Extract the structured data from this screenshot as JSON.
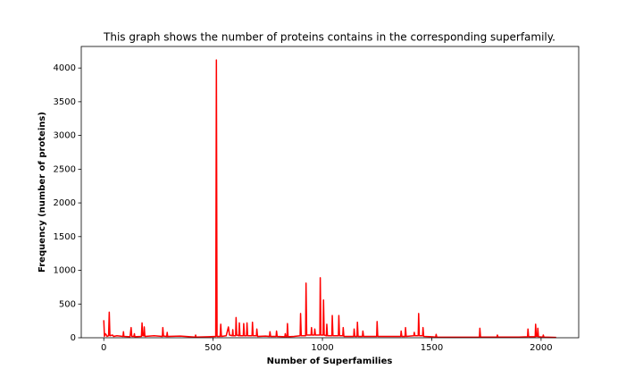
{
  "chart_data": {
    "type": "line",
    "title": "This graph shows the number of proteins contains in the corresponding superfamily.",
    "xlabel": "Number of Superfamilies",
    "ylabel": "Frequency (number of proteins)",
    "xlim": [
      -103,
      2172
    ],
    "ylim": [
      0,
      4320
    ],
    "xticks": [
      0,
      500,
      1000,
      1500,
      2000
    ],
    "yticks": [
      0,
      500,
      1000,
      1500,
      2000,
      2500,
      3000,
      3500,
      4000
    ],
    "x": [
      0,
      3,
      6,
      10,
      15,
      22,
      25,
      28,
      40,
      45,
      60,
      88,
      90,
      92,
      120,
      125,
      128,
      138,
      140,
      142,
      172,
      175,
      178,
      183,
      185,
      188,
      230,
      268,
      270,
      273,
      288,
      290,
      292,
      350,
      418,
      420,
      422,
      480,
      512,
      515,
      518,
      532,
      535,
      538,
      560,
      570,
      575,
      588,
      590,
      592,
      603,
      605,
      608,
      618,
      620,
      623,
      638,
      640,
      643,
      653,
      655,
      658,
      678,
      680,
      683,
      698,
      700,
      703,
      740,
      758,
      760,
      763,
      788,
      790,
      793,
      828,
      830,
      833,
      838,
      840,
      843,
      870,
      898,
      900,
      903,
      923,
      925,
      928,
      948,
      950,
      953,
      963,
      965,
      968,
      988,
      990,
      993,
      1003,
      1005,
      1008,
      1018,
      1020,
      1023,
      1043,
      1045,
      1048,
      1073,
      1075,
      1078,
      1093,
      1095,
      1098,
      1120,
      1143,
      1145,
      1148,
      1158,
      1160,
      1163,
      1183,
      1185,
      1188,
      1220,
      1248,
      1250,
      1253,
      1300,
      1358,
      1360,
      1363,
      1378,
      1380,
      1383,
      1418,
      1420,
      1423,
      1438,
      1440,
      1443,
      1458,
      1460,
      1463,
      1500,
      1518,
      1520,
      1523,
      1600,
      1718,
      1720,
      1723,
      1798,
      1800,
      1803,
      1900,
      1938,
      1940,
      1943,
      1973,
      1975,
      1978,
      1983,
      1985,
      1988,
      2008,
      2010,
      2013,
      2069
    ],
    "series": [
      {
        "color": "#ff0000",
        "values": [
          260,
          20,
          60,
          50,
          20,
          30,
          380,
          30,
          40,
          20,
          30,
          20,
          90,
          20,
          15,
          150,
          20,
          20,
          60,
          15,
          20,
          220,
          30,
          30,
          160,
          20,
          30,
          20,
          150,
          25,
          20,
          80,
          20,
          25,
          10,
          40,
          10,
          15,
          20,
          4120,
          20,
          20,
          200,
          20,
          30,
          160,
          40,
          30,
          120,
          30,
          30,
          300,
          40,
          30,
          220,
          30,
          30,
          210,
          30,
          30,
          220,
          30,
          30,
          230,
          30,
          30,
          130,
          20,
          25,
          20,
          90,
          20,
          20,
          100,
          20,
          15,
          60,
          15,
          15,
          210,
          15,
          20,
          30,
          360,
          30,
          30,
          810,
          40,
          40,
          150,
          40,
          40,
          130,
          40,
          40,
          890,
          40,
          40,
          560,
          40,
          30,
          200,
          30,
          30,
          330,
          30,
          30,
          330,
          30,
          30,
          150,
          20,
          20,
          20,
          130,
          20,
          20,
          230,
          20,
          20,
          100,
          20,
          20,
          20,
          240,
          20,
          20,
          20,
          100,
          20,
          20,
          150,
          20,
          30,
          80,
          30,
          30,
          360,
          30,
          30,
          150,
          20,
          15,
          10,
          50,
          10,
          8,
          10,
          140,
          10,
          10,
          40,
          10,
          10,
          15,
          130,
          15,
          15,
          200,
          20,
          20,
          140,
          15,
          10,
          40,
          10,
          5
        ]
      }
    ]
  }
}
